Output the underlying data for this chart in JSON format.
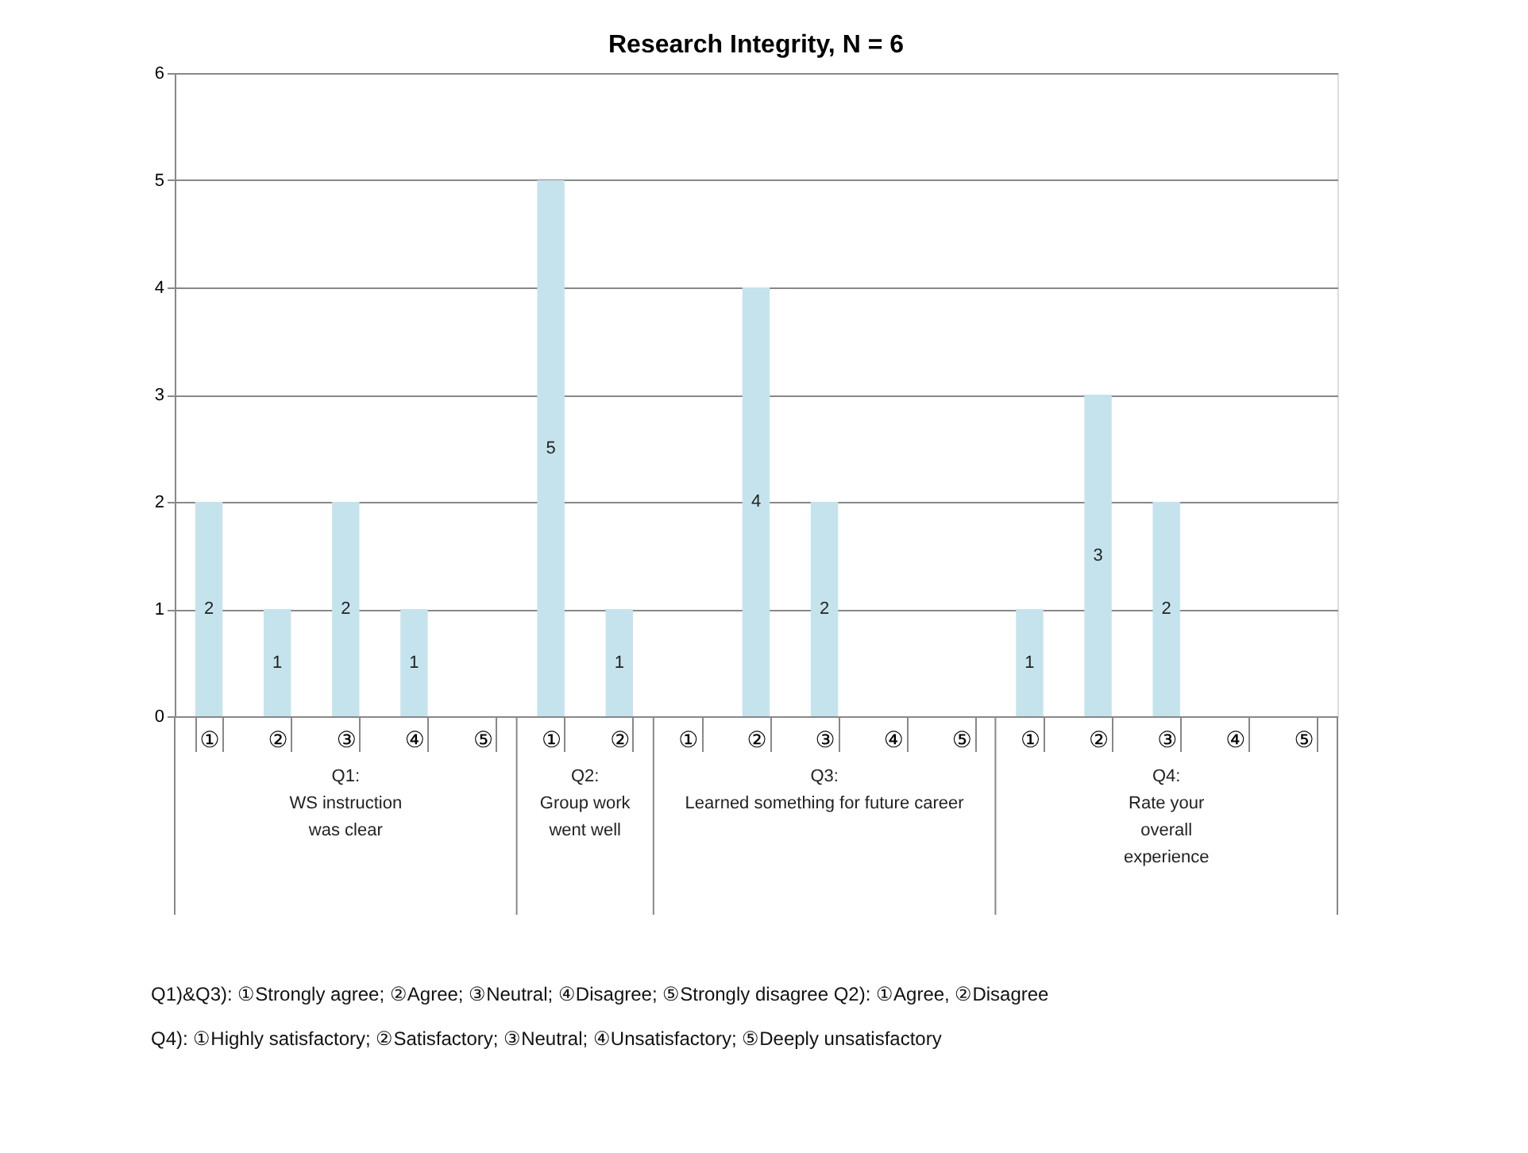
{
  "chart_data": {
    "type": "bar",
    "title": "Research Integrity, N = 6",
    "categories": [
      "①",
      "②",
      "③",
      "④",
      "⑤",
      "①",
      "②",
      "①",
      "②",
      "③",
      "④",
      "⑤",
      "①",
      "②",
      "③",
      "④",
      "⑤"
    ],
    "values": [
      2,
      1,
      2,
      1,
      0,
      5,
      1,
      0,
      4,
      2,
      0,
      0,
      1,
      3,
      2,
      0,
      0
    ],
    "value_labels": [
      "2",
      "1",
      "2",
      "1",
      null,
      "5",
      "1",
      null,
      "4",
      "2",
      null,
      null,
      "1",
      "3",
      "2",
      null,
      null
    ],
    "color": "#c5e3ec",
    "ylim": [
      0,
      6
    ],
    "yticks": [
      0,
      1,
      2,
      3,
      4,
      5,
      6
    ],
    "grid": "y",
    "annotations": [
      "Q1:\nWS instruction\nwas clear",
      "Q2:\nGroup work\nwent well",
      "Q3:\nLearned something for future career",
      "Q4:\nRate your\noverall\nexperience",
      "Q1)&Q3): ①Strongly agree; ②Agree; ③Neutral; ④Disagree; ⑤Strongly disagree    Q2): ①Agree, ②Disagree",
      "Q4): ①Highly satisfactory; ②Satisfactory; ③Neutral; ④Unsatisfactory; ⑤Deeply unsatisfactory"
    ]
  }
}
